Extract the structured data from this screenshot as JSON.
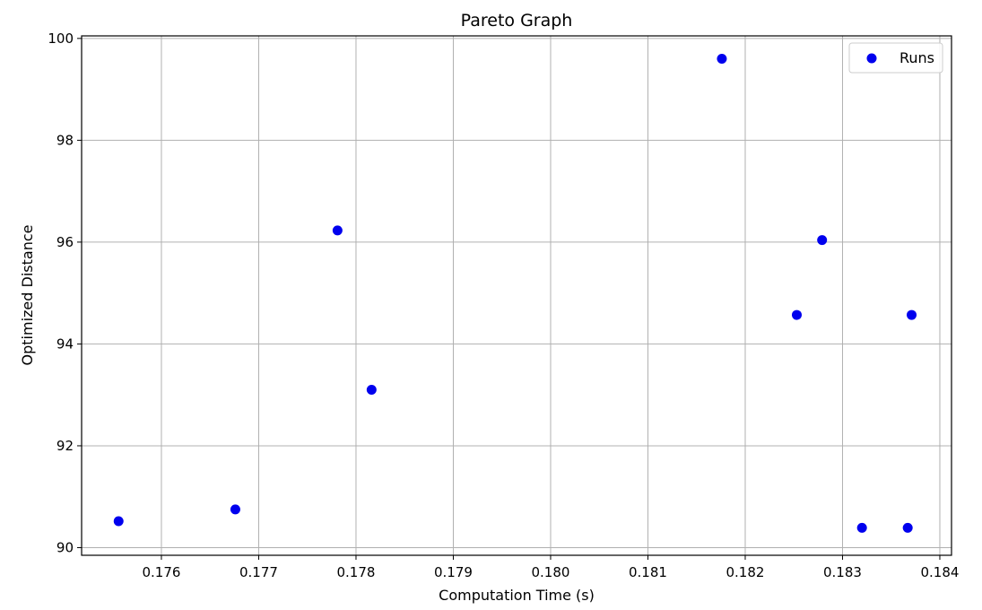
{
  "chart_data": {
    "type": "scatter",
    "title": "Pareto Graph",
    "xlabel": "Computation Time (s)",
    "ylabel": "Optimized Distance",
    "xlim": [
      0.17518,
      0.18412
    ],
    "ylim": [
      89.85,
      100.05
    ],
    "xticks": [
      0.176,
      0.177,
      0.178,
      0.179,
      0.18,
      0.181,
      0.182,
      0.183,
      0.184
    ],
    "xtick_labels": [
      "0.176",
      "0.177",
      "0.178",
      "0.179",
      "0.180",
      "0.181",
      "0.182",
      "0.183",
      "0.184"
    ],
    "yticks": [
      90,
      92,
      94,
      96,
      98,
      100
    ],
    "ytick_labels": [
      "90",
      "92",
      "94",
      "96",
      "98",
      "100"
    ],
    "grid": true,
    "legend_position": "top-right",
    "series": [
      {
        "name": "Runs",
        "color": "#0000ee",
        "points": [
          {
            "x": 0.17556,
            "y": 90.52
          },
          {
            "x": 0.17676,
            "y": 90.75
          },
          {
            "x": 0.17781,
            "y": 96.23
          },
          {
            "x": 0.17816,
            "y": 93.1
          },
          {
            "x": 0.18176,
            "y": 99.6
          },
          {
            "x": 0.18253,
            "y": 94.57
          },
          {
            "x": 0.18279,
            "y": 96.04
          },
          {
            "x": 0.1832,
            "y": 90.39
          },
          {
            "x": 0.18367,
            "y": 90.39
          },
          {
            "x": 0.18371,
            "y": 94.57
          }
        ]
      }
    ]
  }
}
